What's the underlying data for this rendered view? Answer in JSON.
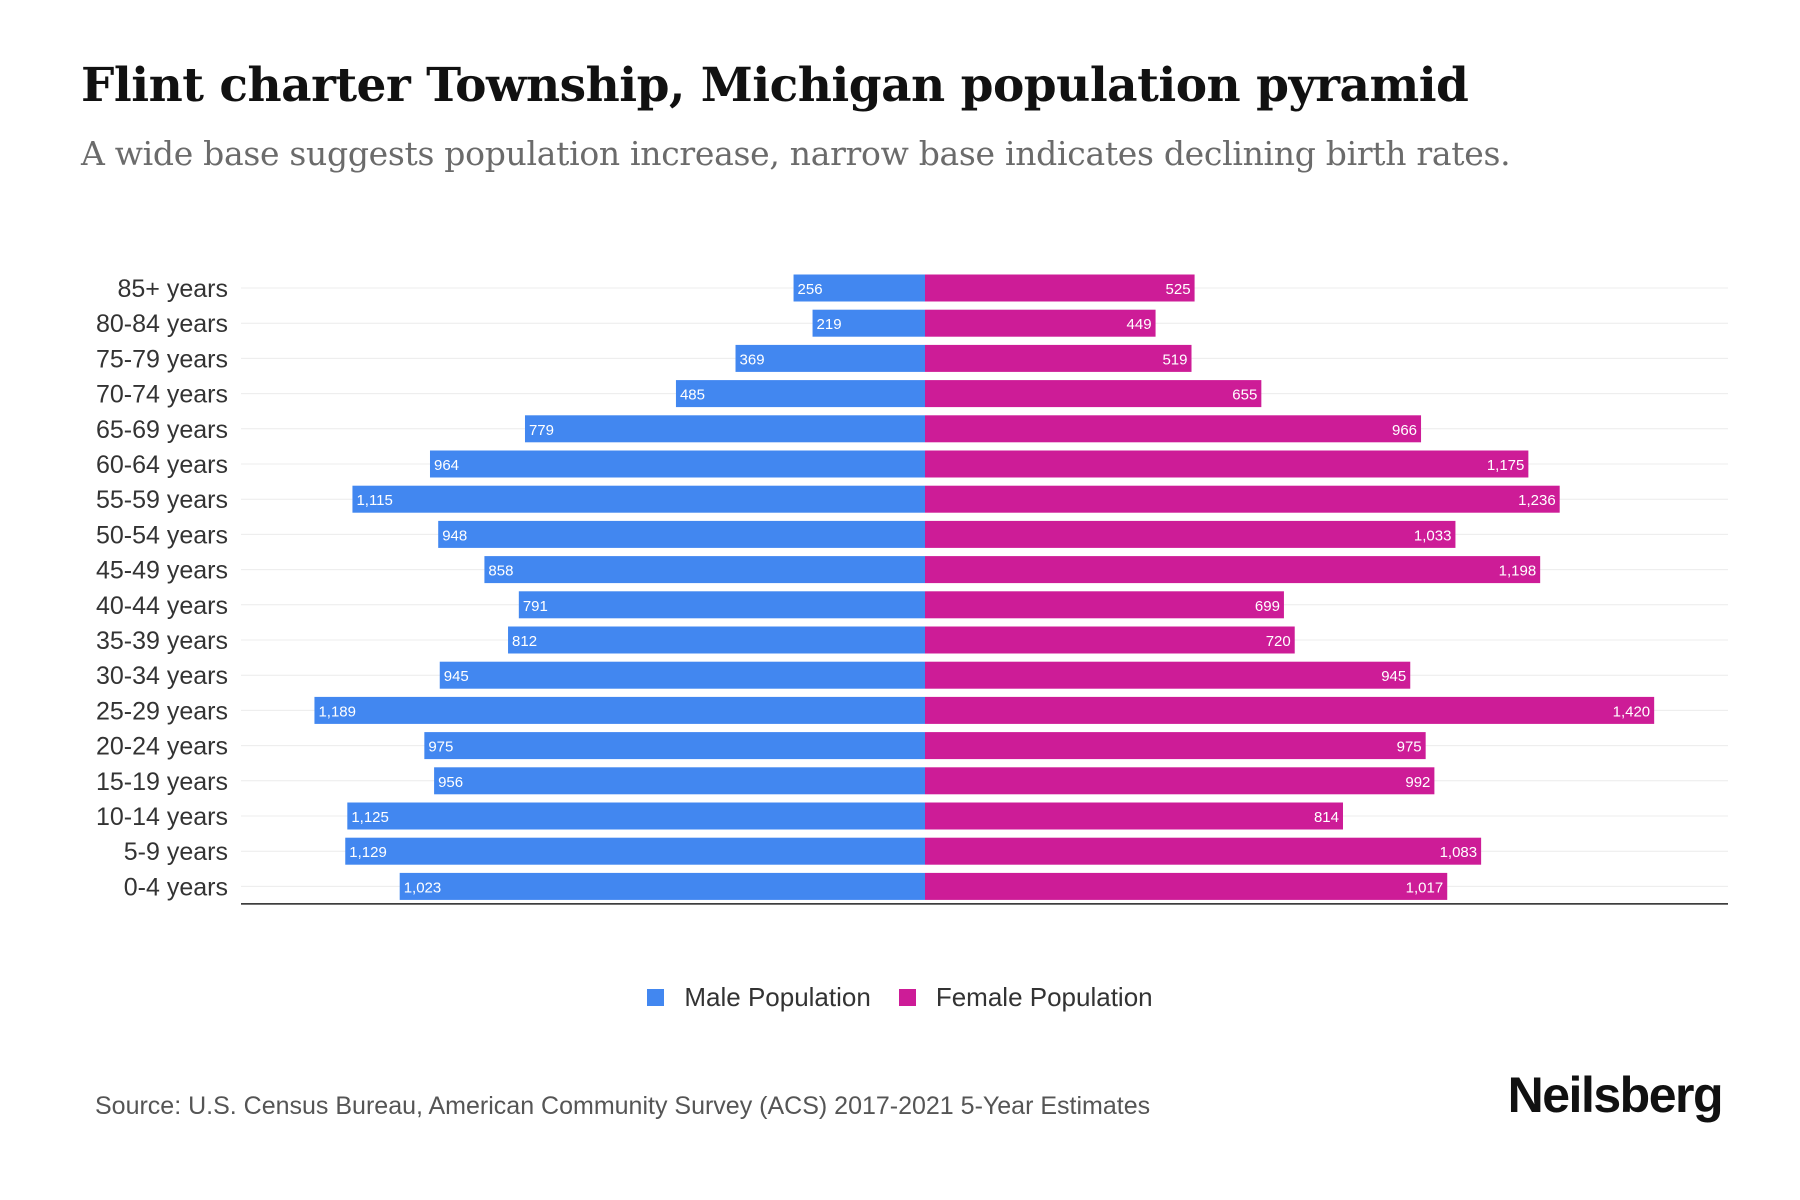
{
  "title": "Flint charter Township, Michigan population pyramid",
  "subtitle": "A wide base suggests population increase, narrow base indicates declining birth rates.",
  "source": "Source: U.S. Census Bureau, American Community Survey (ACS) 2017-2021 5-Year Estimates",
  "brand": "Neilsberg",
  "colors": {
    "male": "#4287f0",
    "female": "#cd1c97"
  },
  "legend": {
    "male": "Male Population",
    "female": "Female Population"
  },
  "chart_data": {
    "type": "bar",
    "orientation": "horizontal-pyramid",
    "categories": [
      "85+ years",
      "80-84 years",
      "75-79 years",
      "70-74 years",
      "65-69 years",
      "60-64 years",
      "55-59 years",
      "50-54 years",
      "45-49 years",
      "40-44 years",
      "35-39 years",
      "30-34 years",
      "25-29 years",
      "20-24 years",
      "15-19 years",
      "10-14 years",
      "5-9 years",
      "0-4 years"
    ],
    "series": [
      {
        "name": "Male Population",
        "values": [
          256,
          219,
          369,
          485,
          779,
          964,
          1115,
          948,
          858,
          791,
          812,
          945,
          1189,
          975,
          956,
          1125,
          1129,
          1023
        ],
        "labels": [
          "256",
          "219",
          "369",
          "485",
          "779",
          "964",
          "1,115",
          "948",
          "858",
          "791",
          "812",
          "945",
          "1,189",
          "975",
          "956",
          "1,125",
          "1,129",
          "1,023"
        ]
      },
      {
        "name": "Female Population",
        "values": [
          525,
          449,
          519,
          655,
          966,
          1175,
          1236,
          1033,
          1198,
          699,
          720,
          945,
          1420,
          975,
          992,
          814,
          1083,
          1017
        ],
        "labels": [
          "525",
          "449",
          "519",
          "655",
          "966",
          "1,175",
          "1,236",
          "1,033",
          "1,198",
          "699",
          "720",
          "945",
          "1,420",
          "975",
          "992",
          "814",
          "1,083",
          "1,017"
        ]
      }
    ],
    "legend_position": "bottom",
    "grid": true
  }
}
